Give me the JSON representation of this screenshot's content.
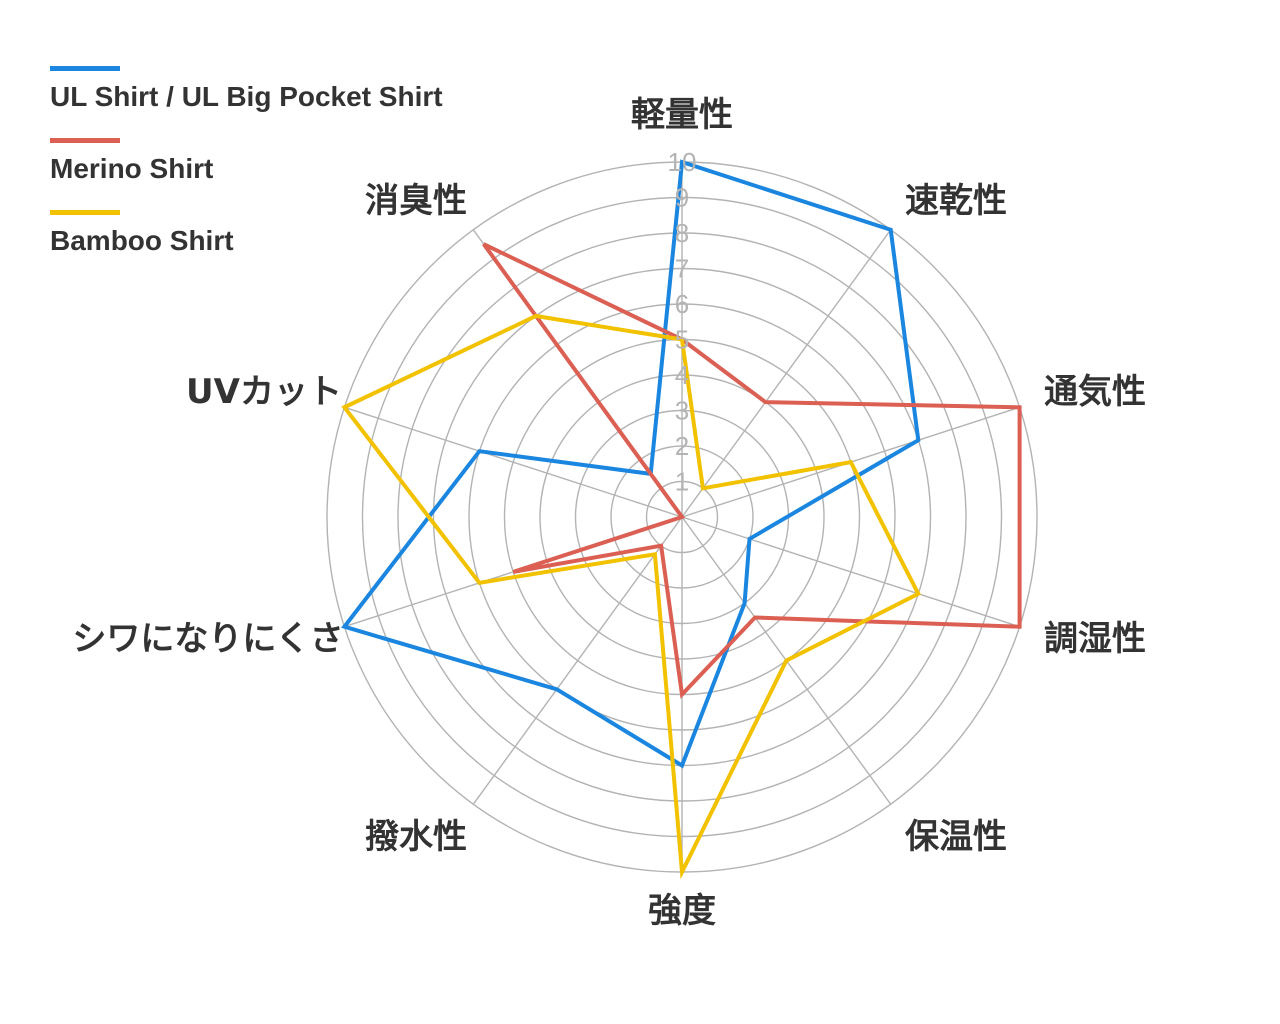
{
  "chart_data": {
    "type": "radar",
    "axes": [
      "軽量性",
      "速乾性",
      "通気性",
      "調湿性",
      "保温性",
      "強度",
      "撥水性",
      "シワになりにくさ",
      "UVカット",
      "消臭性"
    ],
    "ticks": [
      "1",
      "2",
      "3",
      "4",
      "5",
      "6",
      "7",
      "8",
      "9",
      "10"
    ],
    "rmax": 10,
    "grid": true,
    "legend_position": "top-left",
    "series": [
      {
        "name": "UL Shirt / UL Big Pocket Shirt",
        "color": "#1a86e0",
        "values": [
          10,
          10,
          7,
          2,
          3,
          7,
          6,
          10,
          6,
          1.5
        ]
      },
      {
        "name": "Merino Shirt",
        "color": "#db5f52",
        "values": [
          5,
          4,
          10,
          10,
          3.5,
          5,
          1,
          5,
          0,
          9.5
        ]
      },
      {
        "name": "Bamboo Shirt",
        "color": "#f2c200",
        "values": [
          5,
          1,
          5,
          7,
          5,
          10,
          1.3,
          6,
          10,
          7
        ]
      }
    ]
  }
}
